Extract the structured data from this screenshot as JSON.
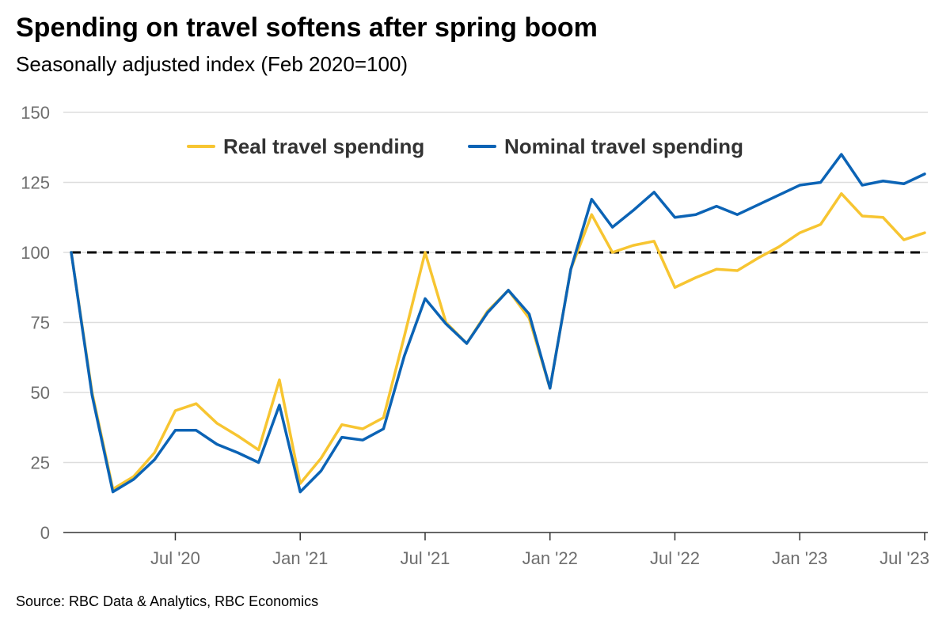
{
  "header": {
    "title": "Spending on travel softens after spring boom",
    "subtitle": "Seasonally adjusted index (Feb 2020=100)"
  },
  "footer": {
    "source": "Source: RBC Data & Analytics, RBC Economics"
  },
  "colors": {
    "real": "#f7c531",
    "nominal": "#0b63b5",
    "reference": "#000000",
    "gridline": "#dddddd",
    "tick_text": "#6e6e6e"
  },
  "chart_data": {
    "type": "line",
    "title": "Spending on travel softens after spring boom",
    "subtitle": "Seasonally adjusted index (Feb 2020=100)",
    "xlabel": "",
    "ylabel": "",
    "ylim": [
      0,
      150
    ],
    "y_ticks": [
      0,
      25,
      50,
      75,
      100,
      125,
      150
    ],
    "grid": true,
    "legend": "top-center",
    "reference_line": {
      "value": 100,
      "style": "dashed"
    },
    "x": [
      "Feb 2020",
      "Mar 2020",
      "Apr 2020",
      "May 2020",
      "Jun 2020",
      "Jul 2020",
      "Aug 2020",
      "Sep 2020",
      "Oct 2020",
      "Nov 2020",
      "Dec 2020",
      "Jan 2021",
      "Feb 2021",
      "Mar 2021",
      "Apr 2021",
      "May 2021",
      "Jun 2021",
      "Jul 2021",
      "Aug 2021",
      "Sep 2021",
      "Oct 2021",
      "Nov 2021",
      "Dec 2021",
      "Jan 2022",
      "Feb 2022",
      "Mar 2022",
      "Apr 2022",
      "May 2022",
      "Jun 2022",
      "Jul 2022",
      "Aug 2022",
      "Sep 2022",
      "Oct 2022",
      "Nov 2022",
      "Dec 2022",
      "Jan 2023",
      "Feb 2023",
      "Mar 2023",
      "Apr 2023",
      "May 2023",
      "Jun 2023",
      "Jul 2023"
    ],
    "x_ticks": [
      {
        "index": 5,
        "label": "Jul '20"
      },
      {
        "index": 11,
        "label": "Jan '21"
      },
      {
        "index": 17,
        "label": "Jul '21"
      },
      {
        "index": 23,
        "label": "Jan '22"
      },
      {
        "index": 29,
        "label": "Jul '22"
      },
      {
        "index": 35,
        "label": "Jan '23"
      },
      {
        "index": 41,
        "label": "Jul '23"
      }
    ],
    "series": [
      {
        "name": "Real travel spending",
        "color": "#f7c531",
        "values": [
          100,
          50,
          15.5,
          20,
          28.5,
          43.5,
          46,
          39,
          34.5,
          29.5,
          54.5,
          17.5,
          26.5,
          38.5,
          37,
          41,
          70,
          100,
          75,
          67.5,
          79,
          86.5,
          76.5,
          51.5,
          94,
          113.5,
          100,
          102.5,
          104,
          87.5,
          91,
          94,
          93.5,
          98,
          102,
          107,
          110,
          121,
          113,
          112.5,
          104.5,
          107
        ]
      },
      {
        "name": "Nominal travel spending",
        "color": "#0b63b5",
        "values": [
          100,
          49,
          14.5,
          19,
          26,
          36.5,
          36.5,
          31.5,
          28.5,
          25,
          45.5,
          14.5,
          22,
          34,
          33,
          37,
          63,
          83.5,
          74.5,
          67.5,
          78.5,
          86.5,
          78,
          51.5,
          94,
          119,
          109,
          115,
          121.5,
          112.5,
          113.5,
          116.5,
          113.5,
          117,
          120.5,
          124,
          125,
          135,
          124,
          125.5,
          124.5,
          128
        ]
      }
    ]
  }
}
